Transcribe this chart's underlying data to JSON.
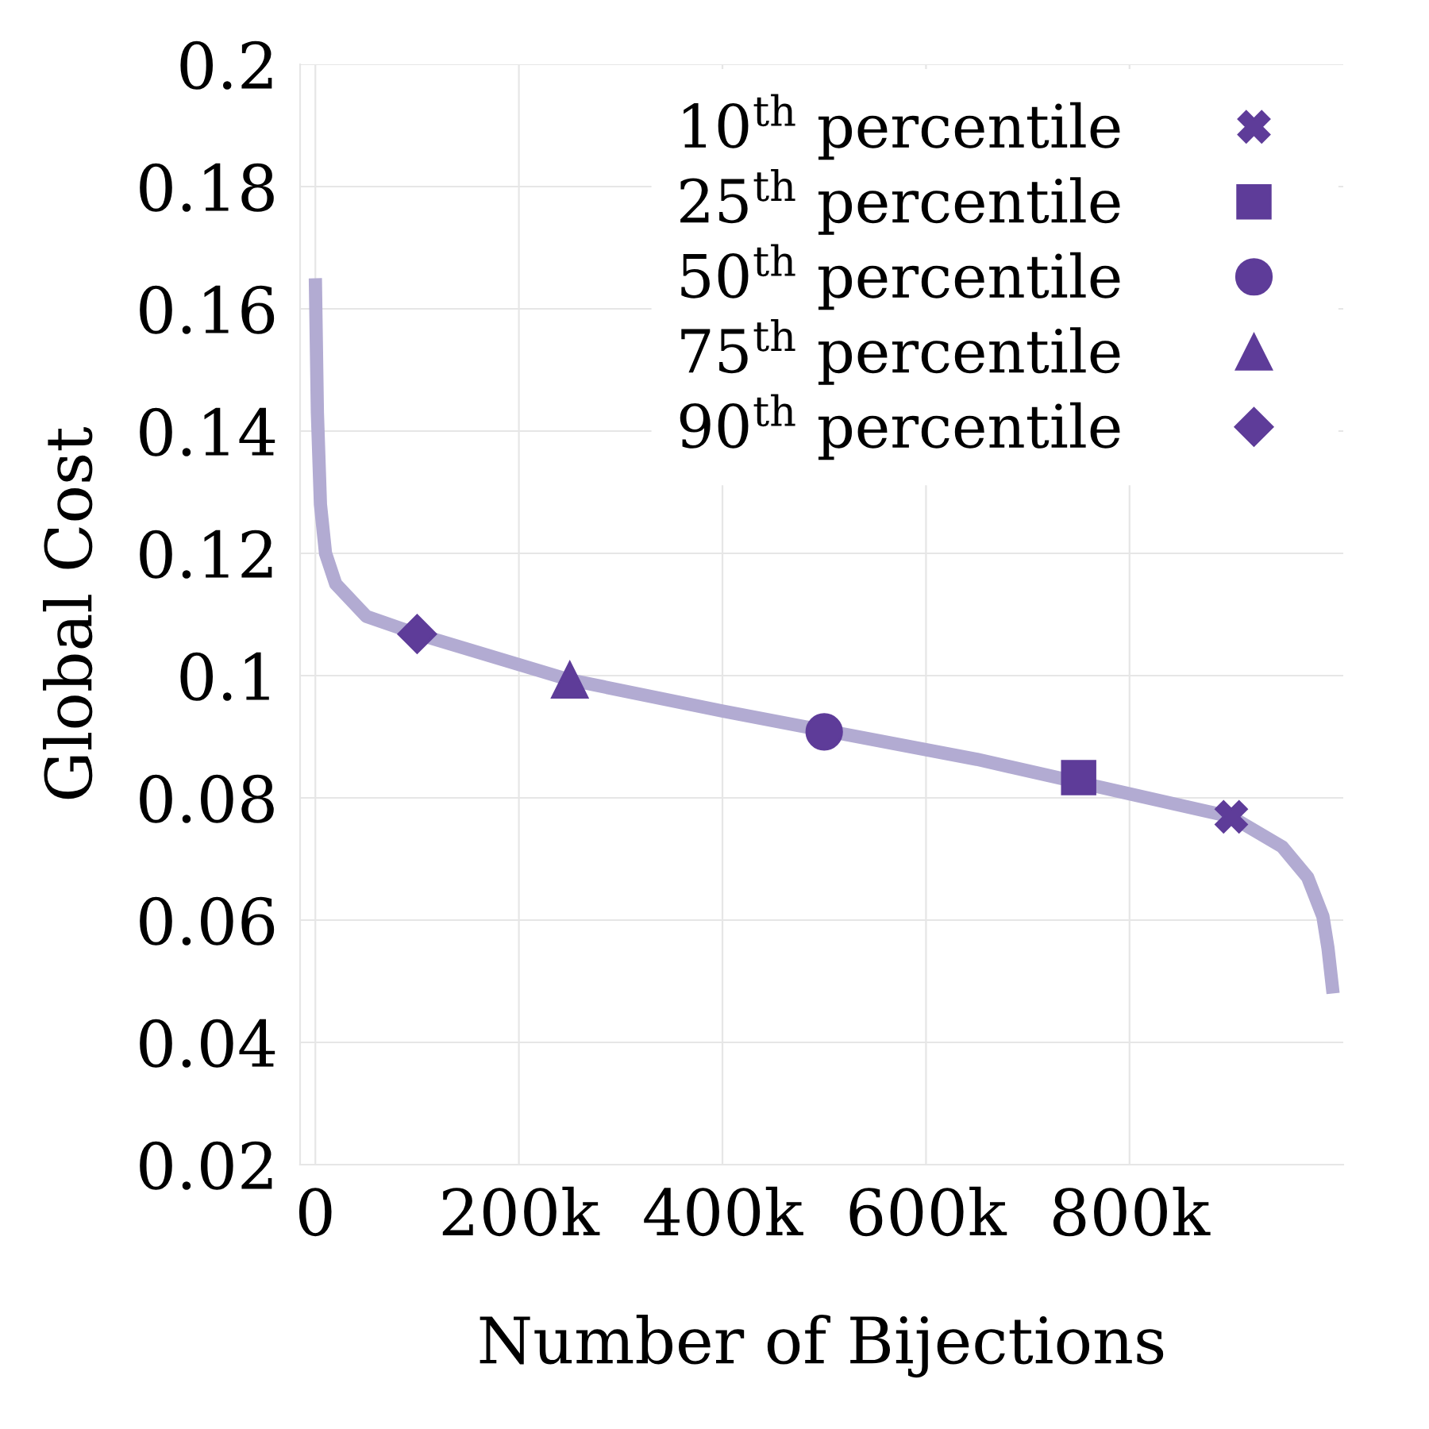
{
  "chart_data": {
    "type": "line",
    "xlabel": "Number of Bijections",
    "ylabel": "Global Cost",
    "xlim": [
      -15000,
      1010000
    ],
    "ylim": [
      0.02,
      0.2
    ],
    "xticks": [
      0,
      {
        "value": 200000,
        "label": "200k"
      },
      {
        "value": 400000,
        "label": "400k"
      },
      {
        "value": 600000,
        "label": "600k"
      },
      {
        "value": 800000,
        "label": "800k"
      }
    ],
    "yticks": [
      0.02,
      0.04,
      0.06,
      0.08,
      0.1,
      0.12,
      0.14,
      0.16,
      0.18,
      0.2
    ],
    "grid": true,
    "legend": "top right",
    "series": [
      {
        "color": "#b2abd2",
        "marker": "none",
        "line_style": "solid",
        "x": [
          0,
          2000,
          5000,
          10000,
          20000,
          50000,
          100000,
          250000,
          400000,
          650000,
          900000,
          950000,
          975000,
          990000,
          995000,
          1000000
        ],
        "values": [
          0.165,
          0.143,
          0.128,
          0.12,
          0.115,
          0.1097,
          0.1068,
          0.0993,
          0.0942,
          0.0863,
          0.0769,
          0.072,
          0.067,
          0.0606,
          0.0554,
          0.048
        ]
      },
      {
        "type": "scatter",
        "name": "10$^{th}$ percentile",
        "color": "#5e3c99",
        "marker": "cross",
        "x": [
          900000
        ],
        "values": [
          0.0769
        ]
      },
      {
        "type": "scatter",
        "name": "25$^{th}$ percentile",
        "color": "#5e3c99",
        "marker": "square",
        "x": [
          750000
        ],
        "values": [
          0.0833
        ]
      },
      {
        "type": "scatter",
        "name": "50$^{th}$ percentile",
        "color": "#5e3c99",
        "marker": "circle",
        "x": [
          500000
        ],
        "values": [
          0.0908
        ]
      },
      {
        "type": "scatter",
        "name": "75$^{th}$ percentile",
        "color": "#5e3c99",
        "marker": "triangle",
        "x": [
          250000
        ],
        "values": [
          0.0993
        ]
      },
      {
        "type": "scatter",
        "name": "90$^{th}$ percentile",
        "color": "#5e3c99",
        "marker": "diamond",
        "x": [
          100000
        ],
        "values": [
          0.1068
        ]
      }
    ]
  }
}
